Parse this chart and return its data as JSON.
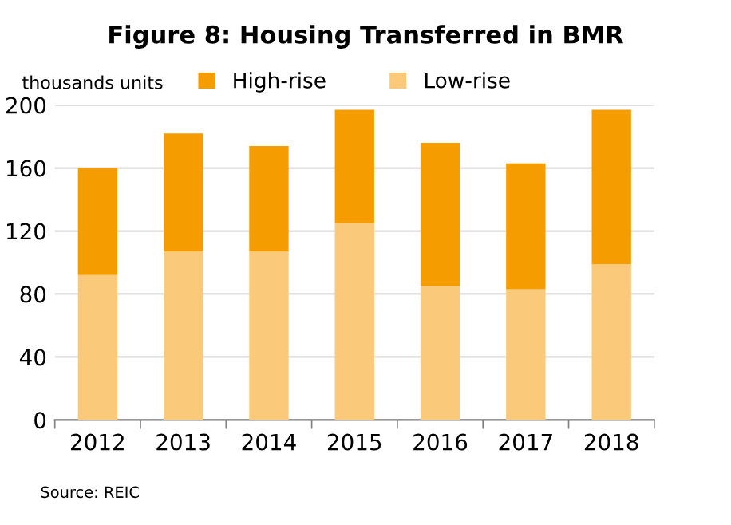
{
  "chart_data": {
    "type": "bar",
    "title": "Figure 8: Housing Transferred in BMR",
    "ylabel": "thousands units",
    "categories": [
      "2012",
      "2013",
      "2014",
      "2015",
      "2016",
      "2017",
      "2018"
    ],
    "stacked": true,
    "series": [
      {
        "name": "Low-rise",
        "color": "#fbc97a",
        "values": [
          92,
          107,
          107,
          125,
          85,
          83,
          99
        ]
      },
      {
        "name": "High-rise",
        "color": "#f59c00",
        "values": [
          68,
          75,
          67,
          72,
          91,
          80,
          98
        ]
      }
    ],
    "ylim": [
      0,
      200
    ],
    "yticks": [
      0,
      40,
      80,
      120,
      160,
      200
    ],
    "grid": "y",
    "legend": "top",
    "annotations": [
      "Source: REIC"
    ]
  }
}
